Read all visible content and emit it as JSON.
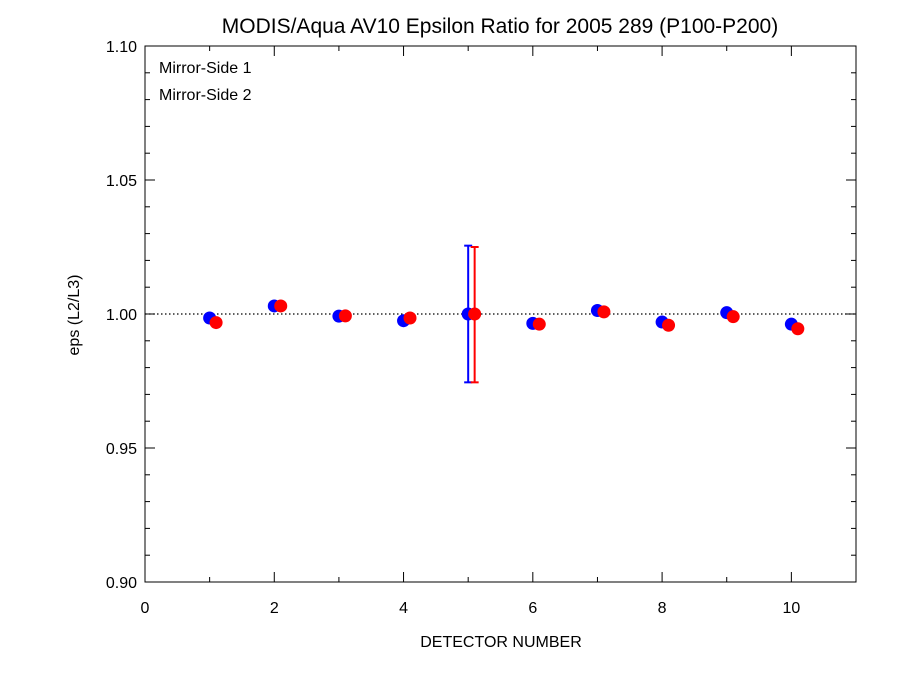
{
  "chart_data": {
    "type": "scatter",
    "title": "MODIS/Aqua AV10 Epsilon Ratio for 2005 289 (P100-P200)",
    "xlabel": "DETECTOR NUMBER",
    "ylabel": "eps (L2/L3)",
    "xlim": [
      0,
      11
    ],
    "ylim": [
      0.9,
      1.1
    ],
    "x_ticks": [
      0,
      2,
      4,
      6,
      8,
      10
    ],
    "x_tick_labels": [
      "0",
      "2",
      "4",
      "6",
      "8",
      "10"
    ],
    "y_ticks": [
      0.9,
      0.95,
      1.0,
      1.05,
      1.1
    ],
    "y_tick_labels": [
      "0.90",
      "0.95",
      "1.00",
      "1.05",
      "1.10"
    ],
    "reference_line": 1.0,
    "legend_position": "top-left",
    "series": [
      {
        "name": "Mirror-Side 1",
        "color": "#0000ff",
        "x": [
          1,
          2,
          3,
          4,
          5,
          6,
          7,
          8,
          9,
          10
        ],
        "y": [
          0.9985,
          1.003,
          0.9992,
          0.9975,
          1.0,
          0.9965,
          1.0013,
          0.997,
          1.0005,
          0.9962
        ],
        "error_bar": {
          "x": 5,
          "low": 0.9745,
          "high": 1.0255
        }
      },
      {
        "name": "Mirror-Side 2",
        "color": "#ff0000",
        "x": [
          1.1,
          2.1,
          3.1,
          4.1,
          5.1,
          6.1,
          7.1,
          8.1,
          9.1,
          10.1
        ],
        "y": [
          0.9968,
          1.003,
          0.9993,
          0.9985,
          1.0,
          0.9962,
          1.0008,
          0.9958,
          0.999,
          0.9945
        ],
        "error_bar": {
          "x": 5.1,
          "low": 0.9745,
          "high": 1.025
        }
      }
    ]
  }
}
